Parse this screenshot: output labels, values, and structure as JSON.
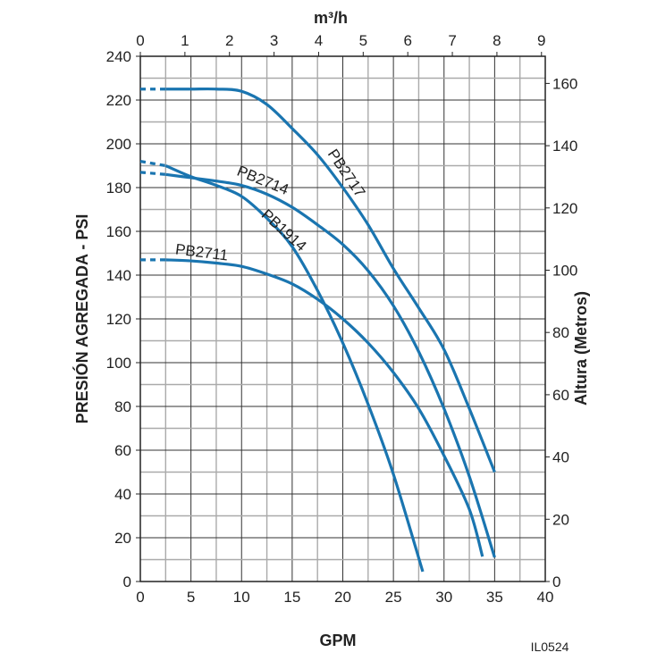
{
  "chart_data": {
    "type": "line",
    "title": "",
    "xlabel": "GPM",
    "ylabel": "PRESIÓN AGREGADA - PSI",
    "y2label": "Altura (Metros)",
    "x2label": "m³/h",
    "code": "IL0524",
    "xlim": [
      0,
      40
    ],
    "ylim": [
      0,
      240
    ],
    "y2lim": [
      0,
      168.7
    ],
    "x2lim": [
      0,
      9.08
    ],
    "grid": true,
    "x_ticks": [
      "0",
      "5",
      "10",
      "15",
      "20",
      "25",
      "30",
      "35",
      "40"
    ],
    "y_ticks": [
      "0",
      "20",
      "40",
      "60",
      "80",
      "100",
      "120",
      "140",
      "160",
      "180",
      "200",
      "220",
      "240"
    ],
    "y2_ticks": [
      "0",
      "20",
      "40",
      "60",
      "80",
      "100",
      "120",
      "140",
      "160"
    ],
    "x2_ticks": [
      "0",
      "1",
      "2",
      "3",
      "4",
      "5",
      "6",
      "7",
      "8",
      "9"
    ],
    "line_color": "#1a75b0",
    "series": [
      {
        "name": "PB2717",
        "dashed_until": 2.5,
        "x": [
          0,
          2.5,
          5,
          7.5,
          10,
          12.5,
          15,
          17.5,
          20,
          22.5,
          25,
          27.5,
          30,
          32.5,
          35
        ],
        "y": [
          225,
          225,
          225,
          225,
          224,
          218,
          207,
          195,
          180,
          163,
          143,
          125,
          106,
          79,
          50
        ]
      },
      {
        "name": "PB2714",
        "dashed_until": 2.5,
        "x": [
          0,
          2.5,
          5,
          7.5,
          10,
          12.5,
          15,
          17.5,
          20,
          22.5,
          25,
          27.5,
          30,
          32.5,
          35
        ],
        "y": [
          187,
          186,
          184.5,
          183,
          181,
          177,
          171,
          163,
          154,
          142,
          126,
          105,
          79,
          48,
          11
        ]
      },
      {
        "name": "PB1914",
        "dashed_until": 2.5,
        "x": [
          0,
          2.5,
          5,
          7.5,
          10,
          12.5,
          15,
          17.5,
          20,
          22.5,
          25,
          27.9
        ],
        "y": [
          192,
          190,
          185,
          181,
          176,
          166,
          153,
          133,
          109,
          81,
          49,
          4.5
        ]
      },
      {
        "name": "PB2711",
        "dashed_until": 2.5,
        "x": [
          0,
          2.5,
          5,
          7.5,
          10,
          12.5,
          15,
          17.5,
          20,
          22.5,
          25,
          27.5,
          30,
          32.5,
          33.8
        ],
        "y": [
          147,
          147,
          146.5,
          145.5,
          144,
          140.5,
          136,
          129,
          120,
          109,
          95.5,
          79,
          57.5,
          33,
          11.4
        ]
      }
    ]
  }
}
